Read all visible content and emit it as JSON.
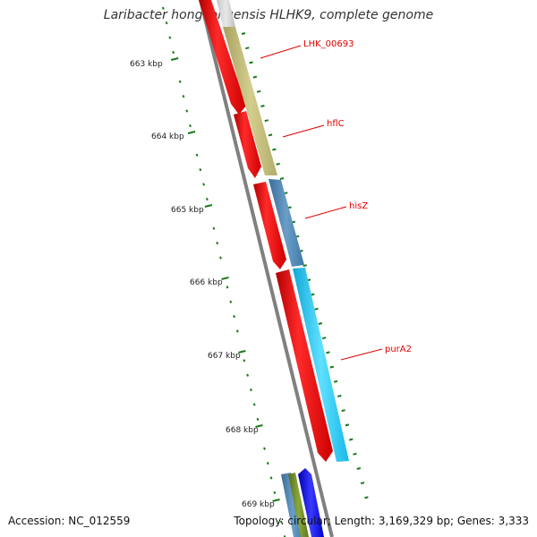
{
  "title": "Laribacter hongkongensis HLHK9, complete genome",
  "accession_text": "Accession: NC_012559",
  "summary_text": "Topology: circular; Length: 3,169,329 bp; Genes: 3,333",
  "ruler": {
    "unit_suffix": " kbp",
    "labels": [
      "663 kbp",
      "664 kbp",
      "665 kbp",
      "666 kbp",
      "667 kbp",
      "668 kbp",
      "669 kbp"
    ]
  },
  "gene_labels": [
    "LHK_00693",
    "hflC",
    "hisZ",
    "purA2"
  ],
  "colors": {
    "backbone": "#808080",
    "cds_forward_red": "#ff0000",
    "khaki_feature": "#c8c27a",
    "steelblue_feature": "#4b86b4",
    "cyan_feature": "#1ec8f0",
    "blue_feature": "#0000ff",
    "green_feature": "#6b8e23",
    "tick": "#1a7a1a",
    "label_text": "#e00000"
  },
  "icons": [
    "forward-arrow-gene-icon",
    "reverse-arrow-gene-icon"
  ]
}
